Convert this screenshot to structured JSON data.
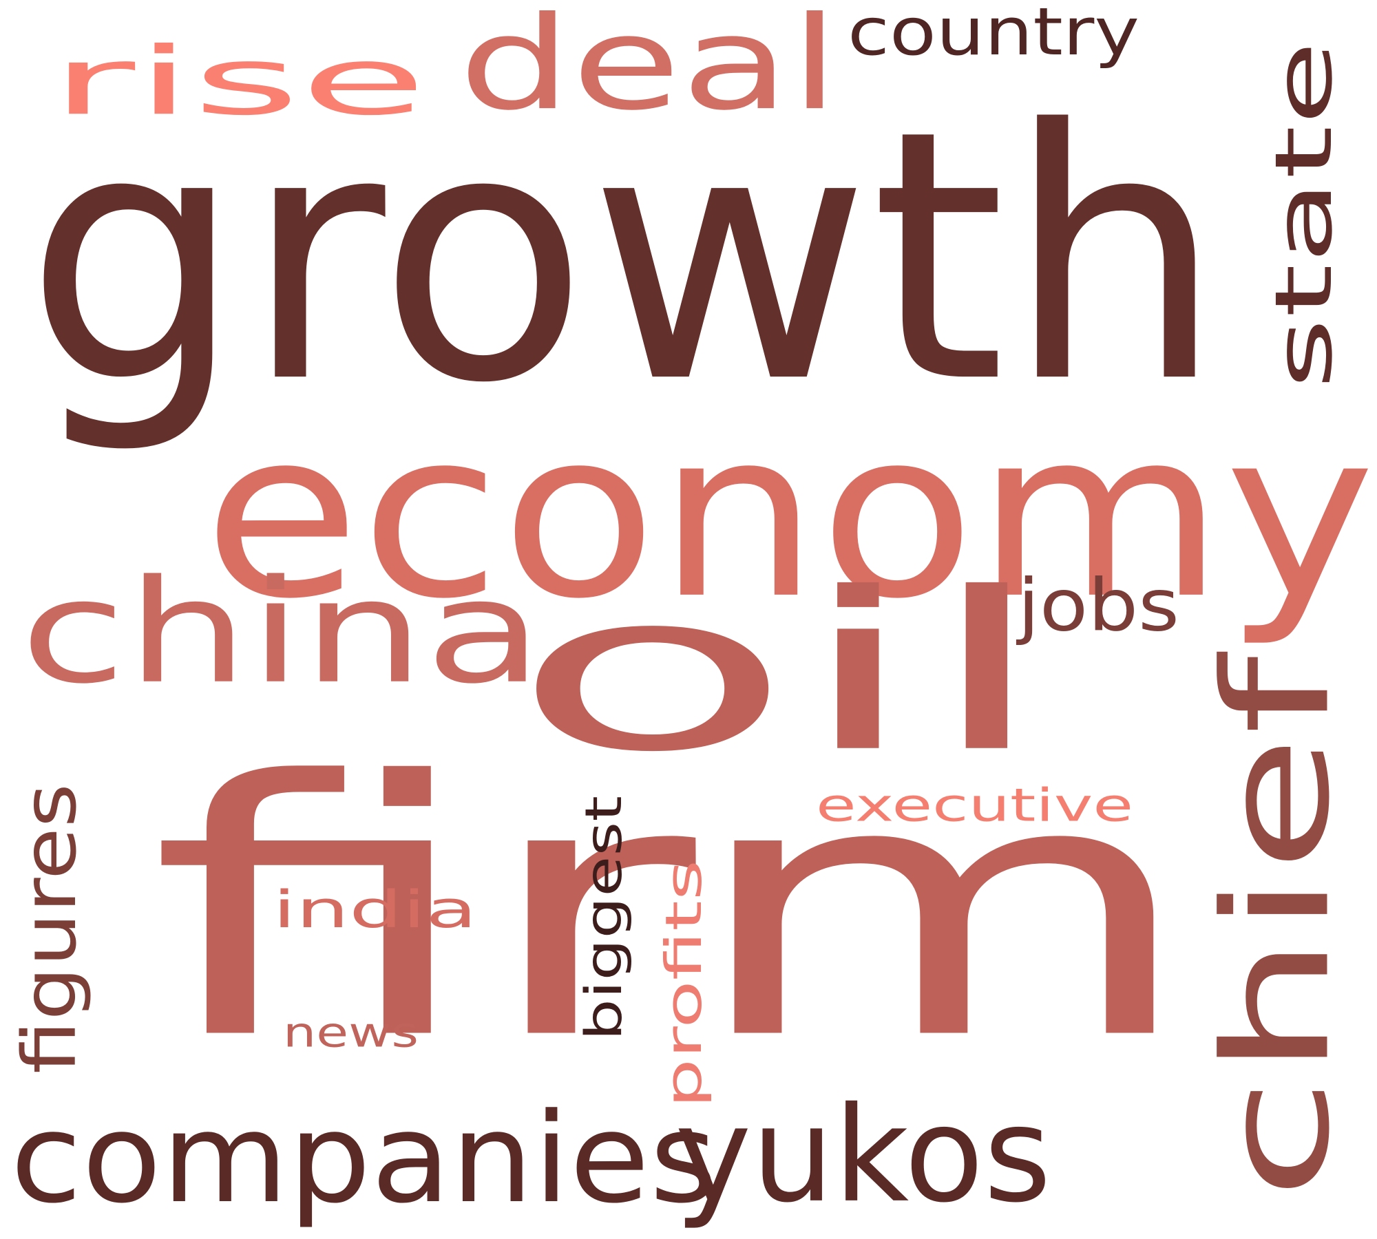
{
  "cloud": {
    "background": "#ffffff",
    "words": [
      {
        "id": "growth",
        "text": "growth",
        "color": "#64302C",
        "rotated": false
      },
      {
        "id": "firm",
        "text": "firm",
        "color": "#BE6158",
        "rotated": false
      },
      {
        "id": "economy",
        "text": "economy",
        "color": "#D96E63",
        "rotated": false
      },
      {
        "id": "oil",
        "text": "oil",
        "color": "#BE6158",
        "rotated": false
      },
      {
        "id": "chief",
        "text": "chief",
        "color": "#924C44",
        "rotated": true
      },
      {
        "id": "china",
        "text": "china",
        "color": "#C96A61",
        "rotated": false
      },
      {
        "id": "companies",
        "text": "companies",
        "color": "#5A2A27",
        "rotated": false
      },
      {
        "id": "yukos",
        "text": "yukos",
        "color": "#5A2A27",
        "rotated": false
      },
      {
        "id": "deal",
        "text": "deal",
        "color": "#D26F65",
        "rotated": false
      },
      {
        "id": "rise",
        "text": "rise",
        "color": "#FA8072",
        "rotated": false
      },
      {
        "id": "state",
        "text": "state",
        "color": "#5E2D29",
        "rotated": true
      },
      {
        "id": "country",
        "text": "country",
        "color": "#4F2623",
        "rotated": false
      },
      {
        "id": "jobs",
        "text": "jobs",
        "color": "#7A3D37",
        "rotated": false
      },
      {
        "id": "executive",
        "text": "executive",
        "color": "#F47F71",
        "rotated": false
      },
      {
        "id": "india",
        "text": "india",
        "color": "#D56C62",
        "rotated": false
      },
      {
        "id": "news",
        "text": "news",
        "color": "#C0645B",
        "rotated": false
      },
      {
        "id": "figures",
        "text": "figures",
        "color": "#7C3F38",
        "rotated": true
      },
      {
        "id": "biggest",
        "text": "biggest",
        "color": "#3D1D1B",
        "rotated": true
      },
      {
        "id": "profits",
        "text": "profits",
        "color": "#EE7C70",
        "rotated": true
      }
    ]
  }
}
